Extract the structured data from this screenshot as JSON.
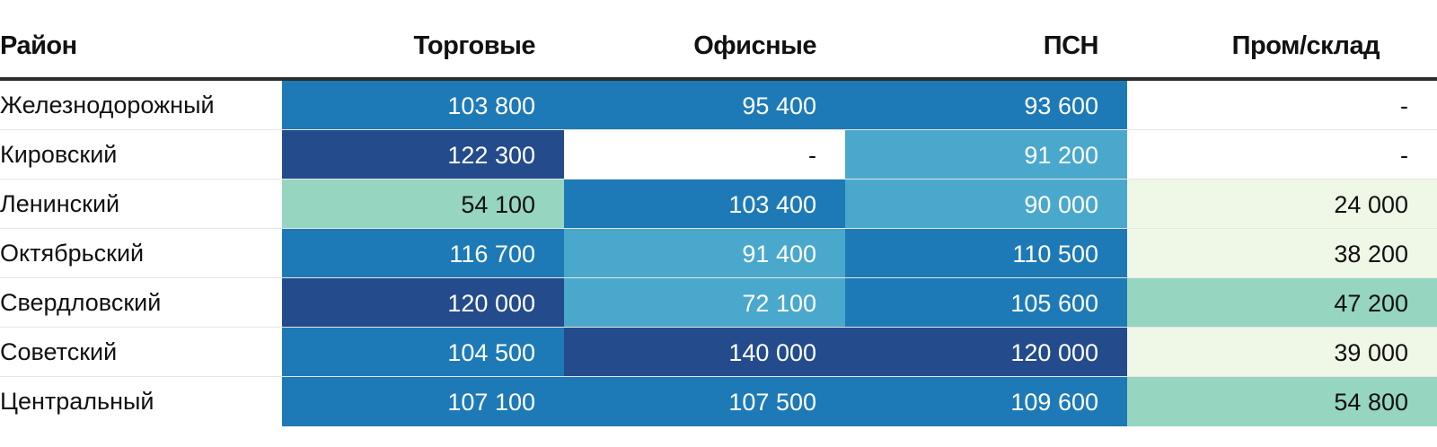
{
  "chart_data": {
    "type": "heatmap",
    "row_header": "Район",
    "columns": [
      "Торговые",
      "Офисные",
      "ПСН",
      "Пром/склад"
    ],
    "rows": [
      {
        "label": "Железнодорожный",
        "values": [
          "103 800",
          "95 400",
          "93 600",
          "-"
        ]
      },
      {
        "label": "Кировский",
        "values": [
          "122 300",
          "-",
          "91 200",
          "-"
        ]
      },
      {
        "label": "Ленинский",
        "values": [
          "54 100",
          "103 400",
          "90 000",
          "24 000"
        ]
      },
      {
        "label": "Октябрьский",
        "values": [
          "116 700",
          "91 400",
          "110 500",
          "38 200"
        ]
      },
      {
        "label": "Свердловский",
        "values": [
          "120 000",
          "72 100",
          "105 600",
          "47 200"
        ]
      },
      {
        "label": "Советский",
        "values": [
          "104 500",
          "140 000",
          "120 000",
          "39 000"
        ]
      },
      {
        "label": "Центральный",
        "values": [
          "107 100",
          "107 500",
          "109 600",
          "54 800"
        ]
      }
    ],
    "colors": {
      "dark_navy": "#244b8c",
      "medium_blue": "#1d7ab7",
      "light_blue": "#4aa8cc",
      "mint": "#96d5c0",
      "pale_green": "#eff8e6",
      "empty": "#ffffff",
      "light_text": "#ffffff",
      "dark_text": "#111111"
    }
  }
}
